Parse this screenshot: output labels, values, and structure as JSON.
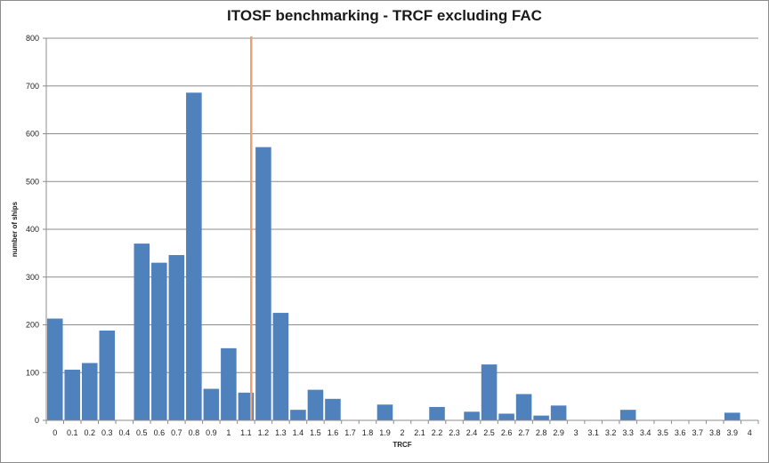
{
  "chart_data": {
    "type": "bar",
    "title": "ITOSF benchmarking - TRCF excluding FAC",
    "xlabel": "TRCF",
    "ylabel": "number of ships",
    "ylim": [
      0,
      800
    ],
    "yticks": [
      "0",
      "100",
      "200",
      "300",
      "400",
      "500",
      "600",
      "700",
      "800"
    ],
    "grid": true,
    "categories": [
      "0",
      "0.1",
      "0.2",
      "0.3",
      "0.4",
      "0.5",
      "0.6",
      "0.7",
      "0.8",
      "0.9",
      "1",
      "1.1",
      "1.2",
      "1.3",
      "1.4",
      "1.5",
      "1.6",
      "1.7",
      "1.8",
      "1.9",
      "2",
      "2.1",
      "2.2",
      "2.3",
      "2.4",
      "2.5",
      "2.6",
      "2.7",
      "2.8",
      "2.9",
      "3",
      "3.1",
      "3.2",
      "3.3",
      "3.4",
      "3.5",
      "3.6",
      "3.7",
      "3.8",
      "3.9",
      "4"
    ],
    "values": [
      213,
      106,
      120,
      188,
      0,
      370,
      330,
      346,
      686,
      66,
      151,
      58,
      572,
      225,
      22,
      64,
      45,
      0,
      0,
      33,
      0,
      0,
      28,
      0,
      18,
      117,
      14,
      55,
      10,
      31,
      0,
      0,
      0,
      22,
      0,
      0,
      0,
      0,
      0,
      16,
      0
    ],
    "marker_line": {
      "x": 1.13,
      "color": "#f0a070"
    },
    "bar_color": "#4f81bd"
  }
}
